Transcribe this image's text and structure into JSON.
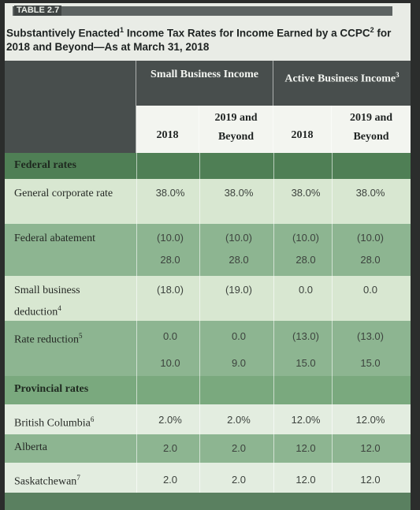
{
  "table": {
    "tag": "TABLE 2.7",
    "title_part1": "Substantively Enacted",
    "title_sup1": "1",
    "title_part2": " Income Tax Rates for Income Earned by a CCPC",
    "title_sup2": "2",
    "title_part3": " for 2018 and Beyond—As at March 31, 2018"
  },
  "headers": {
    "small_business": "Small Business Income",
    "active_business": "Active Business Income",
    "active_sup": "3",
    "col_2018_a": "2018",
    "col_2019_a": "2019 and Beyond",
    "col_2018_b": "2018",
    "col_2019_b": "2019 and Beyond"
  },
  "sections": {
    "federal": "Federal rates",
    "provincial": "Provincial rates"
  },
  "rows": {
    "general": {
      "label": "General corporate rate",
      "values": [
        "38.0%",
        "38.0%",
        "38.0%",
        "38.0%"
      ]
    },
    "abatement": {
      "label": "Federal abatement",
      "values": [
        "(10.0)",
        "(10.0)",
        "(10.0)",
        "(10.0)"
      ],
      "subtotal": [
        "28.0",
        "28.0",
        "28.0",
        "28.0"
      ]
    },
    "small_ded": {
      "label": "Small business deduction",
      "sup": "4",
      "values": [
        "(18.0)",
        "(19.0)",
        "0.0",
        "0.0"
      ]
    },
    "rate_red": {
      "label": "Rate reduction",
      "sup": "5",
      "values": [
        "0.0",
        "0.0",
        "(13.0)",
        "(13.0)"
      ],
      "subtotal": [
        "10.0",
        "9.0",
        "15.0",
        "15.0"
      ]
    },
    "bc": {
      "label": "British Columbia",
      "sup": "6",
      "values": [
        "2.0%",
        "2.0%",
        "12.0%",
        "12.0%"
      ]
    },
    "ab": {
      "label": "Alberta",
      "values": [
        "2.0",
        "2.0",
        "12.0",
        "12.0"
      ]
    },
    "sk": {
      "label": "Saskatchewan",
      "sup": "7",
      "values": [
        "2.0",
        "2.0",
        "12.0",
        "12.0"
      ]
    }
  }
}
